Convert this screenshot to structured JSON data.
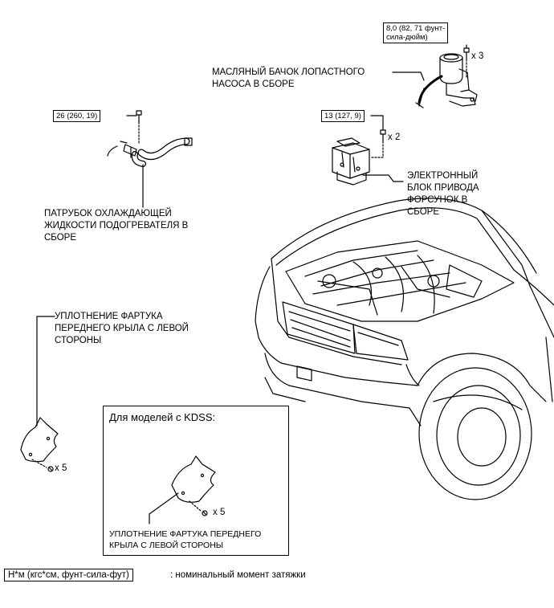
{
  "torques": {
    "reservoir_bolt": [
      "8,0 (82, 71 фунт-",
      "сила-дюйм)"
    ],
    "coolant_hose_bolt": "26 (260, 19)",
    "injector_bolt": "13 (127, 9)"
  },
  "quantities": {
    "reservoir": "x 3",
    "injector": "x 2",
    "fender_seal_left": "x 5",
    "fender_seal_kdss": "x 5"
  },
  "labels": {
    "oil_reservoir": [
      "МАСЛЯНЫЙ БАЧОК ЛОПАСТНОГО",
      "НАСОСА В СБОРЕ"
    ],
    "injector_driver": [
      "ЭЛЕКТРОННЫЙ",
      "БЛОК ПРИВОДА",
      "ФОРСУНОК В",
      "СБОРЕ"
    ],
    "heater_hose": [
      "ПАТРУБОК ОХЛАЖДАЮЩЕЙ",
      "ЖИДКОСТИ ПОДОГРЕВАТЕЛЯ В",
      "СБОРЕ"
    ],
    "fender_seal": [
      "УПЛОТНЕНИЕ ФАРТУКА",
      "ПЕРЕДНЕГО КРЫЛА С ЛЕВОЙ",
      "СТОРОНЫ"
    ],
    "fender_seal_kdss": [
      "УПЛОТНЕНИЕ ФАРТУКА ПЕРЕДНЕГО",
      "КРЫЛА С ЛЕВОЙ СТОРОНЫ"
    ]
  },
  "kdss_box": {
    "title": "Для моделей с KDSS:"
  },
  "legend": {
    "unit": "Н*м (кгс*см, фунт-сила-фут)",
    "description": ": номинальный момент затяжки"
  }
}
